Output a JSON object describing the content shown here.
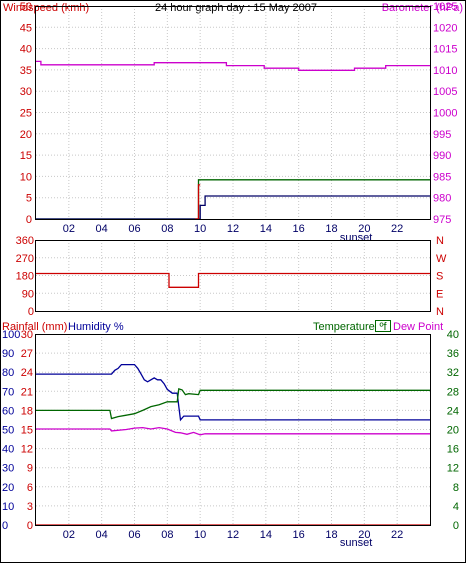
{
  "chart_data": [
    {
      "type": "line",
      "title": "24 hour graph day : 15 May 2007",
      "x_ticks": [
        "02",
        "04",
        "06",
        "08",
        "10",
        "12",
        "14",
        "16",
        "18",
        "20",
        "22"
      ],
      "x_annotation": "sunset",
      "x_annotation_at": 19.5,
      "xlim": [
        0,
        24
      ],
      "left_axis": {
        "label": "Windspeed (kmh)",
        "color": "#cc0000",
        "range": [
          0,
          50
        ],
        "ticks": [
          "0",
          "5",
          "10",
          "15",
          "20",
          "25",
          "30",
          "35",
          "40",
          "45",
          "50"
        ]
      },
      "right_axis": {
        "label": "Barometer (hPa)",
        "color": "#cc00cc",
        "range": [
          975,
          1025
        ],
        "ticks": [
          "975",
          "980",
          "985",
          "990",
          "995",
          "1000",
          "1005",
          "1010",
          "1015",
          "1020",
          "1025"
        ]
      },
      "series": [
        {
          "color": "#cc00cc",
          "axis": "right",
          "x": [
            0,
            0.3,
            0.3,
            7.2,
            7.2,
            11.6,
            11.6,
            13.9,
            13.9,
            16.0,
            16.0,
            19.4,
            19.4,
            21.3,
            21.3,
            24
          ],
          "y": [
            1012,
            1012,
            1011.2,
            1011.2,
            1011.7,
            1011.7,
            1011.0,
            1011.0,
            1010.4,
            1010.4,
            1009.9,
            1009.9,
            1010.4,
            1010.4,
            1011.0,
            1011.0
          ]
        },
        {
          "color": "#006600",
          "axis": "left",
          "x": [
            0,
            9.9,
            9.9,
            24
          ],
          "y": [
            0,
            0,
            9.2,
            9.2
          ]
        },
        {
          "color": "#000066",
          "axis": "left",
          "x": [
            0,
            10.0,
            10.0,
            10.3,
            10.3,
            24
          ],
          "y": [
            0,
            0,
            3.2,
            3.2,
            5.4,
            5.4
          ]
        },
        {
          "color": "#cc0000",
          "axis": "left",
          "x": [
            9.7,
            9.9,
            9.9,
            10.0
          ],
          "y": [
            0,
            0,
            8.0,
            8.0
          ]
        }
      ]
    },
    {
      "type": "line",
      "x_ticks": [
        "02",
        "04",
        "06",
        "08",
        "10",
        "12",
        "14",
        "16",
        "18",
        "20",
        "22"
      ],
      "xlim": [
        0,
        24
      ],
      "left_axis": {
        "color": "#cc0000",
        "range": [
          0,
          360
        ],
        "ticks": [
          "0",
          "90",
          "180",
          "270",
          "360"
        ]
      },
      "right_axis": {
        "color": "#cc0000",
        "labels": [
          "N",
          "E",
          "S",
          "W",
          "N"
        ]
      },
      "series": [
        {
          "color": "#cc0000",
          "x": [
            0,
            8.1,
            8.1,
            9.9,
            9.9,
            24
          ],
          "y": [
            190,
            190,
            120,
            120,
            190,
            190
          ]
        }
      ]
    },
    {
      "type": "line",
      "x_ticks": [
        "02",
        "04",
        "06",
        "08",
        "10",
        "12",
        "14",
        "16",
        "18",
        "20",
        "22"
      ],
      "x_annotation": "sunset",
      "x_annotation_at": 19.5,
      "xlim": [
        0,
        24
      ],
      "legend_left": [
        {
          "label": "Rainfall (mm)",
          "color": "#cc0000"
        },
        {
          "label": "Humidity %",
          "color": "#000099"
        }
      ],
      "legend_right": [
        {
          "label": "Temperature",
          "color": "#006600"
        },
        {
          "label": "ºf",
          "color": "#006600",
          "boxed": true
        },
        {
          "label": "Dew Point",
          "color": "#cc00cc"
        }
      ],
      "rainfall_axis": {
        "color": "#cc0000",
        "range": [
          0,
          30
        ],
        "ticks": [
          "0",
          "3",
          "6",
          "9",
          "12",
          "15",
          "18",
          "21",
          "24",
          "27",
          "30"
        ]
      },
      "humidity_axis": {
        "color": "#000099",
        "range": [
          0,
          100
        ],
        "ticks": [
          "0",
          "10",
          "20",
          "30",
          "40",
          "50",
          "60",
          "70",
          "80",
          "90",
          "100"
        ]
      },
      "temperature_axis": {
        "color": "#006600",
        "range": [
          0,
          40
        ],
        "ticks": [
          "0",
          "4",
          "8",
          "12",
          "16",
          "20",
          "24",
          "28",
          "32",
          "36",
          "40"
        ]
      },
      "series": [
        {
          "name": "Humidity",
          "color": "#000099",
          "axis": "humidity",
          "x": [
            0,
            4.6,
            4.8,
            5.0,
            5.2,
            6.0,
            6.2,
            6.4,
            6.6,
            6.8,
            7.0,
            7.2,
            7.4,
            7.6,
            7.8,
            8.0,
            8.3,
            8.6,
            8.7,
            8.8,
            9.0,
            9.2,
            9.9,
            10.0,
            10.2,
            24
          ],
          "y": [
            79,
            79,
            81,
            82,
            84,
            84,
            82,
            79,
            76,
            75,
            76,
            77,
            76,
            76,
            74,
            71,
            69,
            69,
            62,
            55,
            57,
            57,
            57,
            55,
            55,
            55
          ]
        },
        {
          "name": "Temperature",
          "color": "#006600",
          "axis": "temperature",
          "x": [
            0,
            4.5,
            4.6,
            5.0,
            5.5,
            6.0,
            6.5,
            7.0,
            7.5,
            8.0,
            8.6,
            8.7,
            8.9,
            9.1,
            9.3,
            9.9,
            10.0,
            10.3,
            24
          ],
          "y": [
            24,
            24,
            22.3,
            22.7,
            23.0,
            23.3,
            24.0,
            24.8,
            25.2,
            25.8,
            25.8,
            28.5,
            28.3,
            27.3,
            27.5,
            27.3,
            28.2,
            28.2,
            28.2
          ]
        },
        {
          "name": "Dew Point",
          "color": "#cc00cc",
          "axis": "temperature",
          "x": [
            0,
            4.5,
            4.6,
            5.5,
            6.0,
            6.5,
            7.0,
            7.5,
            8.0,
            8.5,
            8.8,
            9.2,
            9.6,
            10.0,
            10.3,
            24
          ],
          "y": [
            20.1,
            20.1,
            19.7,
            20.0,
            20.3,
            20.4,
            20.1,
            20.4,
            20.1,
            19.4,
            19.3,
            19.0,
            19.4,
            18.9,
            19.1,
            19.1
          ]
        },
        {
          "name": "Rainfall",
          "color": "#cc0000",
          "axis": "rainfall",
          "x": [
            0,
            24
          ],
          "y": [
            0,
            0
          ]
        }
      ]
    }
  ]
}
